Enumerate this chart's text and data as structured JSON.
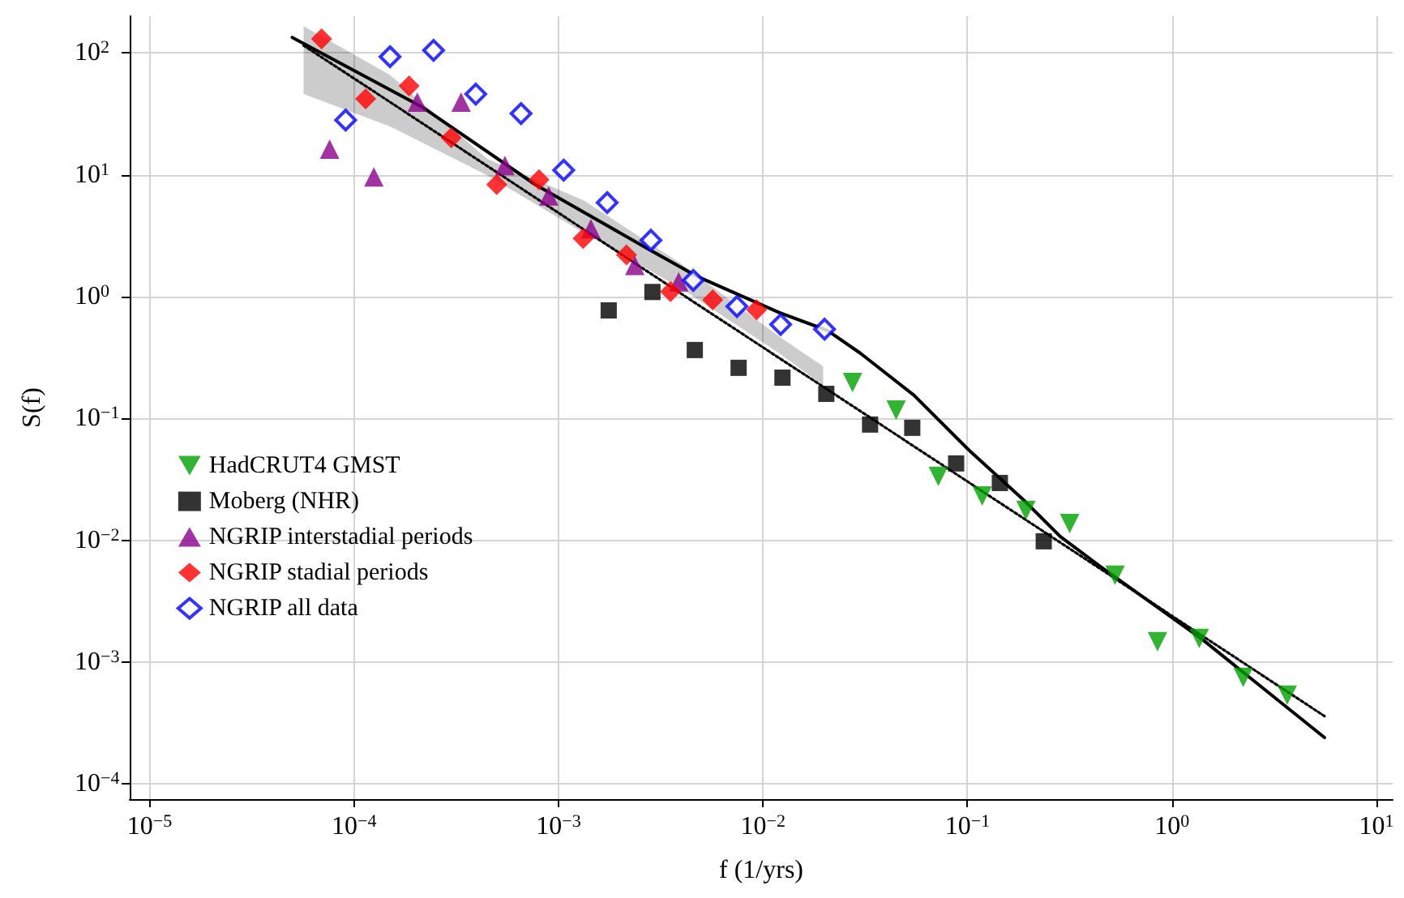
{
  "chart_data": {
    "type": "scatter",
    "xlabel": "f (1/yrs)",
    "ylabel": "S(f)",
    "log": "xy",
    "grid": true,
    "legend": "bottom left",
    "xlim": [
      8e-06,
      12
    ],
    "ylim": [
      7.5e-05,
      200
    ],
    "xticks": [
      {
        "value": 1e-05,
        "label": "10$^{−5}$"
      },
      {
        "value": 0.0001,
        "label": "10$^{−4}$"
      },
      {
        "value": 0.001,
        "label": "10$^{−3}$"
      },
      {
        "value": 0.01,
        "label": "10$^{−2}$"
      },
      {
        "value": 0.1,
        "label": "10$^{−1}$"
      },
      {
        "value": 1,
        "label": "10$^{0}$"
      },
      {
        "value": 10,
        "label": "10$^{1}$"
      }
    ],
    "yticks": [
      {
        "value": 0.0001,
        "label": "10$^{−4}$"
      },
      {
        "value": 0.001,
        "label": "10$^{−3}$"
      },
      {
        "value": 0.01,
        "label": "10$^{−2}$"
      },
      {
        "value": 0.1,
        "label": "10$^{−1}$"
      },
      {
        "value": 1,
        "label": "10$^{0}$"
      },
      {
        "value": 10,
        "label": "10$^{1}$"
      },
      {
        "value": 100,
        "label": "10$^{2}$"
      }
    ],
    "series": [
      {
        "type": "line",
        "color": "#000000",
        "line_style": "dotted",
        "marker": "none",
        "x": [
          5.67e-05,
          0.00015,
          0.000448,
          0.00134,
          0.004,
          0.012,
          0.0197,
          5.57
        ],
        "values": [
          115,
          39.5,
          11.8,
          3.52,
          1.05,
          0.313,
          0.182,
          0.00036
        ],
        "lower": [
          46,
          24.9,
          9.9,
          3.3,
          1.16,
          0.343,
          0.186,
          null
        ],
        "upper": [
          166,
          66,
          13.5,
          6.1,
          1.85,
          0.47,
          0.268,
          null
        ]
      },
      {
        "type": "line",
        "color": "#000000",
        "line_style": "solid",
        "marker": "none",
        "x": [
          4.99e-05,
          0.000215,
          0.00077,
          0.00278,
          0.00482,
          0.012,
          0.0207,
          0.0299,
          0.0547,
          0.102,
          0.186,
          0.283,
          0.44,
          1.39,
          5.57
        ],
        "values": [
          134,
          36,
          8.3,
          2.43,
          1.45,
          0.74,
          0.526,
          0.343,
          0.155,
          0.0546,
          0.0218,
          0.0108,
          0.0062,
          0.00156,
          0.00024
        ]
      },
      {
        "name": "HadCRUT4 GMST",
        "color": "#00a000",
        "marker": "triangle-down",
        "x": [
          0.0274,
          0.0448,
          0.072,
          0.118,
          0.193,
          0.316,
          0.527,
          0.85,
          1.36,
          2.23,
          3.66
        ],
        "values": [
          0.197,
          0.117,
          0.0334,
          0.0231,
          0.0176,
          0.0137,
          0.00516,
          0.00147,
          0.00156,
          0.00075,
          0.000535
        ]
      },
      {
        "name": "Moberg (NHR)",
        "color": "#000000",
        "marker": "square",
        "x": [
          0.00176,
          0.00288,
          0.00464,
          0.0076,
          0.01245,
          0.0204,
          0.0334,
          0.0537,
          0.088,
          0.144,
          0.236
        ],
        "values": [
          0.77,
          1.09,
          0.364,
          0.26,
          0.216,
          0.159,
          0.089,
          0.0837,
          0.0427,
          0.0295,
          0.0098
        ]
      },
      {
        "name": "NGRIP interstadial periods",
        "color": "#8b008b",
        "marker": "triangle",
        "x": [
          7.6e-05,
          0.000125,
          0.000204,
          0.000334,
          0.000547,
          0.000896,
          0.00144,
          0.00236,
          0.00387
        ],
        "values": [
          16.2,
          9.6,
          39.5,
          39.5,
          11.9,
          6.7,
          3.6,
          1.8,
          1.32
        ]
      },
      {
        "name": "NGRIP stadial periods",
        "color": "#ff0000",
        "marker": "diamond",
        "x": [
          6.94e-05,
          0.000114,
          0.000186,
          0.000299,
          0.000499,
          0.000803,
          0.00132,
          0.00215,
          0.00353,
          0.00568,
          0.0093
        ],
        "values": [
          130,
          41.9,
          53.5,
          20.1,
          8.3,
          9.1,
          3.0,
          2.2,
          1.1,
          0.94,
          0.78
        ]
      },
      {
        "name": "NGRIP all data",
        "color": "#0000ff",
        "marker": "diamond-open",
        "x": [
          9.1e-05,
          0.00015,
          0.000245,
          0.000394,
          0.000656,
          0.00106,
          0.00173,
          0.00283,
          0.00456,
          0.00746,
          0.0122,
          0.02
        ],
        "values": [
          28.1,
          93,
          105,
          45.9,
          31.8,
          10.9,
          5.9,
          2.9,
          1.36,
          0.83,
          0.59,
          0.54
        ]
      }
    ]
  }
}
